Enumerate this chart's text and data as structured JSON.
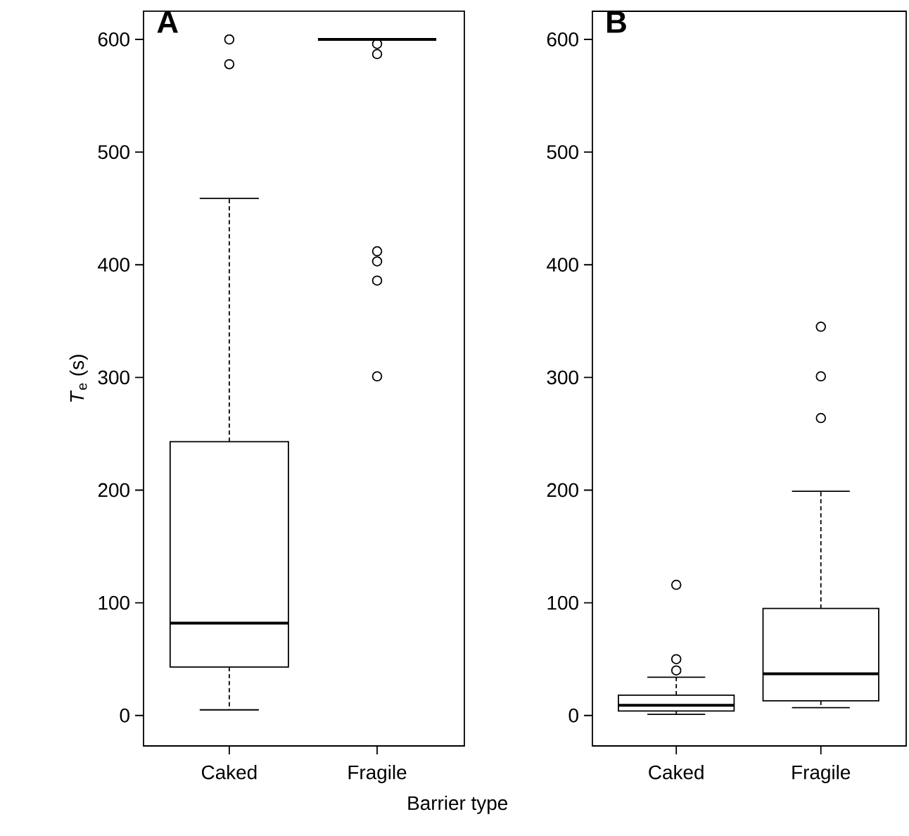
{
  "chart_data": [
    {
      "type": "box",
      "title": "A",
      "ylabel": "*T*$_{e}$ (s)",
      "categories": [
        "Caked",
        "Fragile"
      ],
      "ylim": [
        -27,
        625
      ],
      "yticks": [
        0,
        100,
        200,
        300,
        400,
        500,
        600
      ],
      "color": "#000000",
      "boxes": [
        {
          "low": 5,
          "q1": 43,
          "median": 82,
          "q3": 243,
          "high": 459,
          "outliers": [
            578,
            600
          ]
        },
        {
          "low": 600,
          "q1": 600,
          "median": 600,
          "q3": 600,
          "high": 600,
          "outliers": [
            301,
            386,
            403,
            412,
            587,
            596
          ]
        }
      ]
    },
    {
      "type": "box",
      "title": "B",
      "xlabel": "Barrier type",
      "categories": [
        "Caked",
        "Fragile"
      ],
      "ylim": [
        -27,
        625
      ],
      "yticks": [
        0,
        100,
        200,
        300,
        400,
        500,
        600
      ],
      "color": "#000000",
      "boxes": [
        {
          "low": 1,
          "q1": 4,
          "median": 9,
          "q3": 18,
          "high": 34,
          "outliers": [
            40,
            50,
            116
          ]
        },
        {
          "low": 7,
          "q1": 13,
          "median": 37,
          "q3": 95,
          "high": 199,
          "outliers": [
            264,
            301,
            345
          ]
        }
      ]
    }
  ]
}
